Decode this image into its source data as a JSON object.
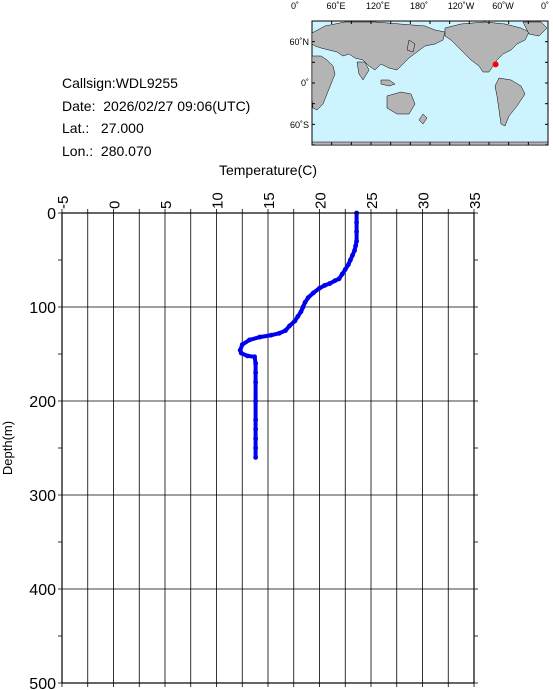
{
  "station": {
    "callsign_label": "Callsign:",
    "callsign": "WDL9255",
    "date_label": "Date:",
    "date": "2026/02/27 09:06(UTC)",
    "lat_label": "Lat.:",
    "lat": "27.000",
    "lon_label": "Lon.:",
    "lon": "280.070"
  },
  "map": {
    "lon_ticks": [
      "0˚",
      "60˚E",
      "120˚E",
      "180˚",
      "120˚W",
      "60˚W",
      "0˚"
    ],
    "lat_ticks": [
      "60˚N",
      "0˚",
      "60˚S"
    ],
    "ocean_color": "#cdf3ff",
    "land_color": "#b4b4b4",
    "marker_color": "#ff0000",
    "marker_lon": 280.07,
    "marker_lat": 27.0
  },
  "chart_data": {
    "type": "line",
    "title": "",
    "xlabel": "Temperature(C)",
    "ylabel": "Depth(m)",
    "xlim": [
      -5,
      35
    ],
    "ylim": [
      0,
      500
    ],
    "x_ticks": [
      "-5",
      "0",
      "5",
      "10",
      "15",
      "20",
      "25",
      "30",
      "35"
    ],
    "y_ticks": [
      "0",
      "100",
      "200",
      "300",
      "400",
      "500"
    ],
    "grid": true,
    "line_color": "#0000ee",
    "series": [
      {
        "x": [
          23.6,
          23.6,
          23.6,
          23.6,
          23.5,
          23.4,
          23.2,
          23.0,
          22.8,
          22.5,
          22.2,
          21.9,
          21.5,
          21.0,
          20.5,
          20.0,
          19.4,
          18.9,
          18.6,
          18.4,
          18.2,
          17.9,
          17.6,
          17.1,
          16.7,
          16.1,
          15.3,
          14.2,
          13.2,
          12.5,
          12.3,
          12.4,
          13.0,
          13.7,
          13.8,
          13.8,
          13.8,
          13.8,
          13.8,
          13.8,
          13.8,
          13.8,
          13.8
        ],
        "y": [
          0,
          10,
          20,
          30,
          35,
          40,
          45,
          50,
          55,
          60,
          65,
          70,
          72,
          75,
          77,
          80,
          85,
          90,
          95,
          100,
          105,
          110,
          115,
          120,
          125,
          128,
          130,
          132,
          135,
          140,
          146,
          149,
          152,
          153,
          160,
          170,
          180,
          200,
          220,
          230,
          240,
          250,
          260
        ]
      }
    ]
  }
}
